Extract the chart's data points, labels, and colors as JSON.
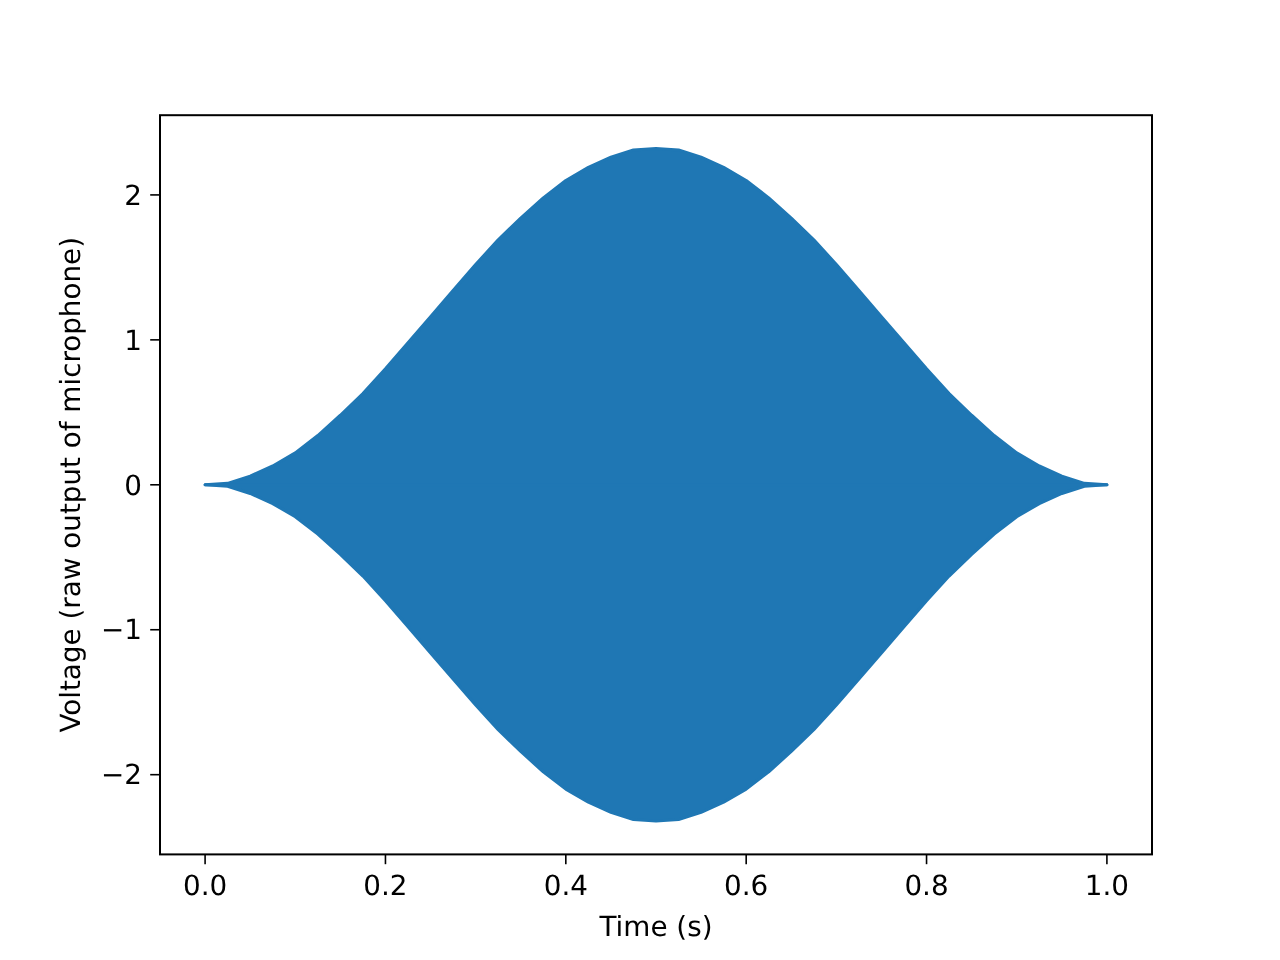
{
  "chart_data": {
    "type": "area",
    "xlabel": "Time (s)",
    "ylabel": "Voltage (raw output of microphone)",
    "x": [
      0,
      0.025,
      0.05,
      0.075,
      0.1,
      0.125,
      0.15,
      0.175,
      0.2,
      0.225,
      0.25,
      0.275,
      0.3,
      0.325,
      0.35,
      0.375,
      0.4,
      0.425,
      0.45,
      0.475,
      0.5,
      0.525,
      0.55,
      0.575,
      0.6,
      0.625,
      0.65,
      0.675,
      0.7,
      0.725,
      0.75,
      0.775,
      0.8,
      0.825,
      0.85,
      0.875,
      0.9,
      0.925,
      0.95,
      0.975,
      1.0
    ],
    "series": [
      {
        "color": "#1f77b4",
        "values": [
          0,
          0.01,
          0.06,
          0.13,
          0.22,
          0.34,
          0.48,
          0.63,
          0.8,
          0.98,
          1.16,
          1.34,
          1.52,
          1.69,
          1.84,
          1.98,
          2.1,
          2.19,
          2.26,
          2.31,
          2.32,
          2.31,
          2.26,
          2.19,
          2.1,
          1.98,
          1.84,
          1.69,
          1.52,
          1.34,
          1.16,
          0.98,
          0.8,
          0.63,
          0.48,
          0.34,
          0.22,
          0.13,
          0.06,
          0.01,
          0
        ]
      },
      {
        "color": "#1f77b4",
        "values": [
          0,
          -0.01,
          -0.06,
          -0.13,
          -0.22,
          -0.34,
          -0.48,
          -0.63,
          -0.8,
          -0.98,
          -1.16,
          -1.34,
          -1.52,
          -1.69,
          -1.84,
          -1.98,
          -2.1,
          -2.19,
          -2.26,
          -2.31,
          -2.32,
          -2.31,
          -2.26,
          -2.19,
          -2.1,
          -1.98,
          -1.84,
          -1.69,
          -1.52,
          -1.34,
          -1.16,
          -0.98,
          -0.8,
          -0.63,
          -0.48,
          -0.34,
          -0.22,
          -0.13,
          -0.06,
          -0.01,
          0
        ]
      }
    ],
    "xlim": [
      -0.05,
      1.05
    ],
    "ylim": [
      -2.55,
      2.55
    ],
    "xticks": [
      {
        "value": 0,
        "label": "0.0"
      },
      0.2,
      0.4,
      0.6,
      0.8,
      {
        "value": 1,
        "label": "1.0"
      }
    ],
    "yticks": [
      {
        "value": -2,
        "label": "−2"
      },
      {
        "value": -1,
        "label": "−1"
      },
      0,
      1,
      2
    ]
  }
}
